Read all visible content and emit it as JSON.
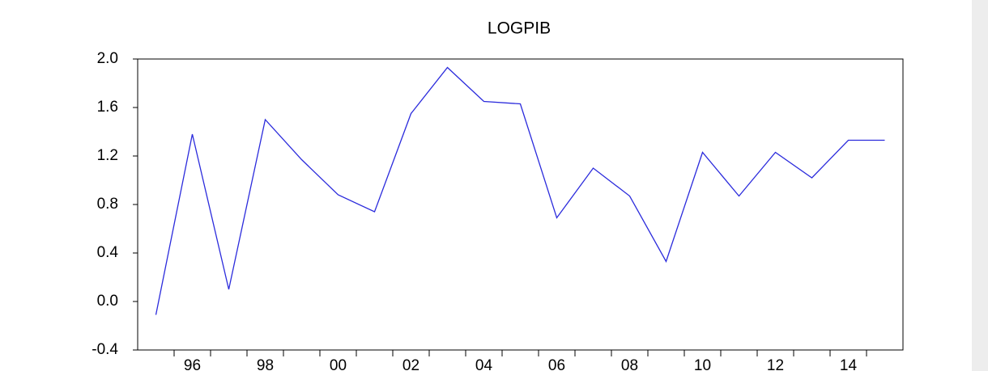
{
  "chart_data": {
    "type": "line",
    "title": "LOGPIB",
    "categories": [
      null,
      "96",
      null,
      "98",
      null,
      "00",
      null,
      "02",
      null,
      "04",
      null,
      "06",
      null,
      "08",
      null,
      "10",
      null,
      "12",
      null,
      "14",
      null
    ],
    "series": [
      {
        "name": "LOGPIB",
        "color": "#2b2bdc",
        "values": [
          -0.11,
          1.38,
          0.1,
          1.5,
          1.17,
          0.88,
          0.74,
          1.55,
          1.93,
          1.65,
          1.63,
          0.69,
          1.1,
          0.87,
          0.33,
          1.23,
          0.87,
          1.23,
          1.02,
          1.33,
          1.33
        ]
      }
    ],
    "ylim": [
      -0.4,
      2.0
    ],
    "yticks": [
      {
        "value": -0.4,
        "label": "-0.4"
      },
      {
        "value": 0,
        "label": "0.0"
      },
      {
        "value": 0.4,
        "label": "0.4"
      },
      {
        "value": 0.8,
        "label": "0.8"
      },
      {
        "value": 1.2,
        "label": "1.2"
      },
      {
        "value": 1.6,
        "label": "1.6"
      },
      {
        "value": 2.0,
        "label": "2.0"
      }
    ],
    "grid": false
  }
}
